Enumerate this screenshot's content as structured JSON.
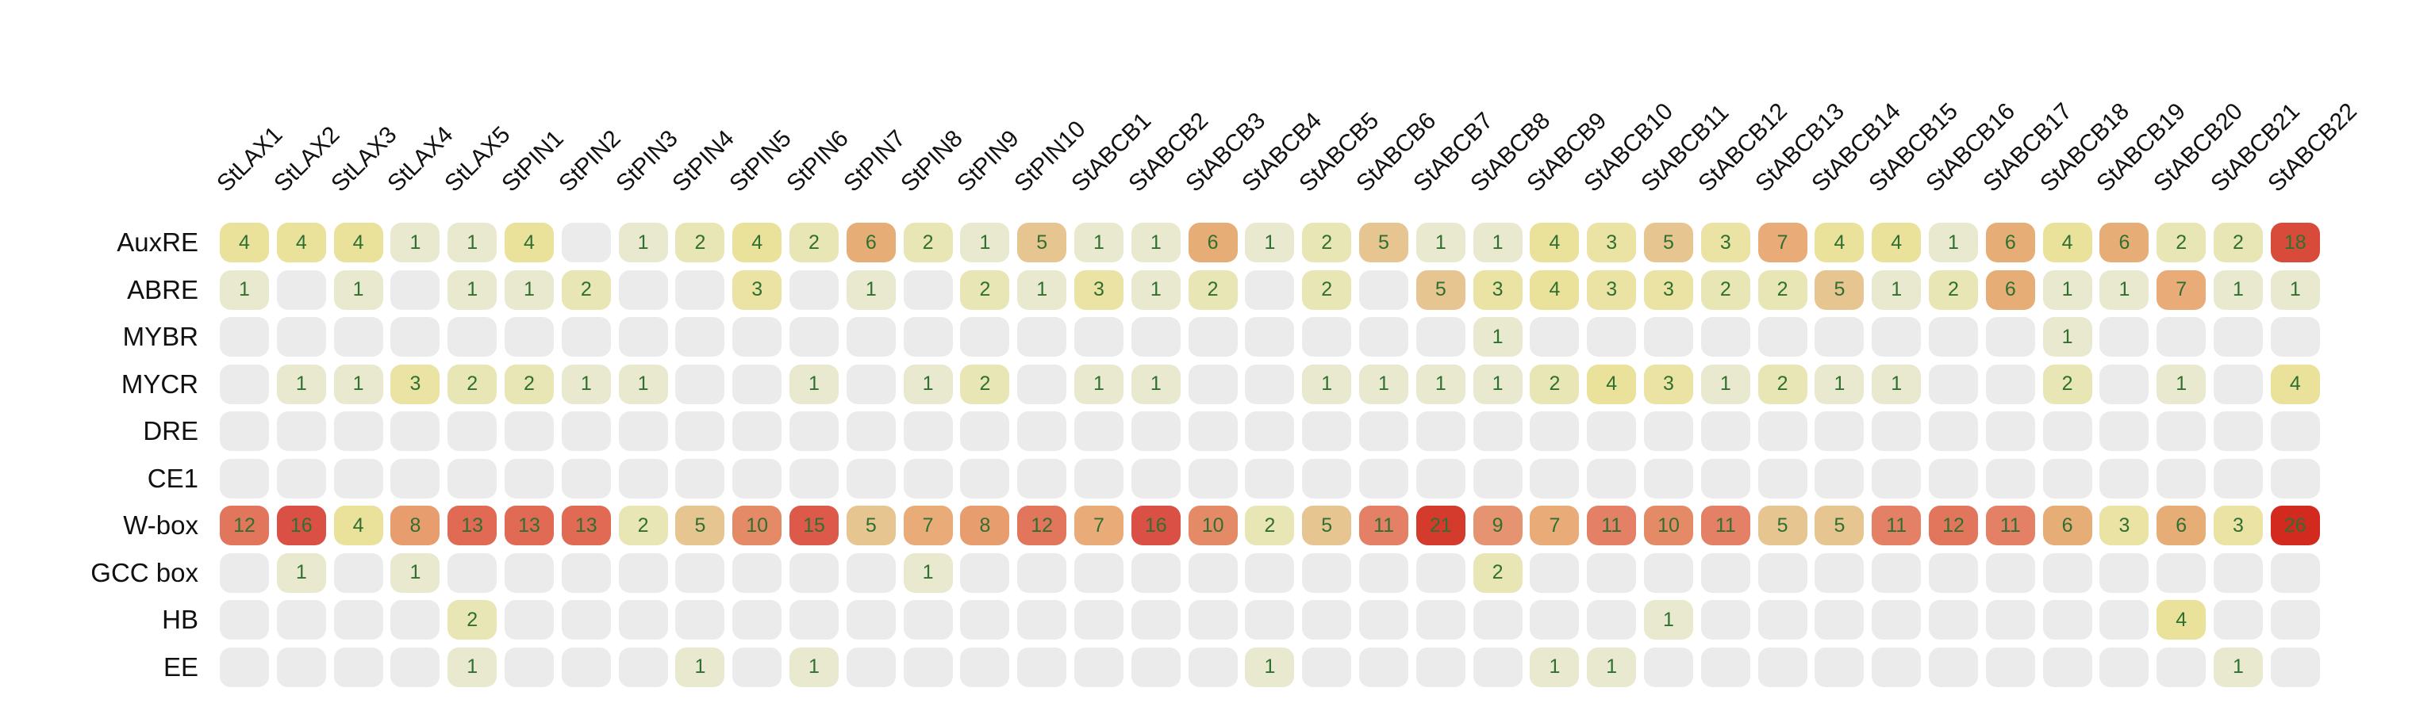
{
  "figure": {
    "background": "#ffffff",
    "description_hint": "Heatmap of cis-acting regulatory elements counts per gene"
  },
  "chart_data": {
    "type": "heatmap",
    "title": "",
    "xlabel": "",
    "ylabel": "",
    "legend": "none",
    "grid": "off",
    "value_range": [
      0,
      26
    ],
    "columns": [
      "StLAX1",
      "StLAX2",
      "StLAX3",
      "StLAX4",
      "StLAX5",
      "StPIN1",
      "StPIN2",
      "StPIN3",
      "StPIN4",
      "StPIN5",
      "StPIN6",
      "StPIN7",
      "StPIN8",
      "StPIN9",
      "StPIN10",
      "StABCB1",
      "StABCB2",
      "StABCB3",
      "StABCB4",
      "StABCB5",
      "StABCB6",
      "StABCB7",
      "StABCB8",
      "StABCB9",
      "StABCB10",
      "StABCB11",
      "StABCB12",
      "StABCB13",
      "StABCB14",
      "StABCB15",
      "StABCB16",
      "StABCB17",
      "StABCB18",
      "StABCB19",
      "StABCB20",
      "StABCB21",
      "StABCB22"
    ],
    "rows": [
      "AuxRE",
      "ABRE",
      "MYBR",
      "MYCR",
      "DRE",
      "CE1",
      "W-box",
      "GCC box",
      "HB",
      "EE"
    ],
    "values": [
      [
        4,
        4,
        4,
        1,
        1,
        4,
        null,
        1,
        2,
        4,
        2,
        6,
        2,
        1,
        5,
        1,
        1,
        6,
        1,
        2,
        5,
        1,
        1,
        4,
        3,
        5,
        3,
        7,
        4,
        4,
        1,
        6,
        4,
        6,
        2,
        2,
        18
      ],
      [
        1,
        null,
        1,
        null,
        1,
        1,
        2,
        null,
        null,
        3,
        null,
        1,
        null,
        2,
        1,
        3,
        1,
        2,
        null,
        2,
        null,
        5,
        3,
        4,
        3,
        3,
        2,
        2,
        5,
        1,
        2,
        6,
        1,
        1,
        7,
        1,
        1
      ],
      [
        null,
        null,
        null,
        null,
        null,
        null,
        null,
        null,
        null,
        null,
        null,
        null,
        null,
        null,
        null,
        null,
        null,
        null,
        null,
        null,
        null,
        null,
        1,
        null,
        null,
        null,
        null,
        null,
        null,
        null,
        null,
        null,
        1,
        null,
        null,
        null,
        null
      ],
      [
        null,
        1,
        1,
        3,
        2,
        2,
        1,
        1,
        null,
        null,
        1,
        null,
        1,
        2,
        null,
        1,
        1,
        null,
        null,
        1,
        1,
        1,
        1,
        2,
        4,
        3,
        1,
        2,
        1,
        1,
        null,
        null,
        2,
        null,
        1,
        null,
        4
      ],
      [
        null,
        null,
        null,
        null,
        null,
        null,
        null,
        null,
        null,
        null,
        null,
        null,
        null,
        null,
        null,
        null,
        null,
        null,
        null,
        null,
        null,
        null,
        null,
        null,
        null,
        null,
        null,
        null,
        null,
        null,
        null,
        null,
        null,
        null,
        null,
        null,
        null
      ],
      [
        null,
        null,
        null,
        null,
        null,
        null,
        null,
        null,
        null,
        null,
        null,
        null,
        null,
        null,
        null,
        null,
        null,
        null,
        null,
        null,
        null,
        null,
        null,
        null,
        null,
        null,
        null,
        null,
        null,
        null,
        null,
        null,
        null,
        null,
        null,
        null,
        null
      ],
      [
        12,
        16,
        4,
        8,
        13,
        13,
        13,
        2,
        5,
        10,
        15,
        5,
        7,
        8,
        12,
        7,
        16,
        10,
        2,
        5,
        11,
        21,
        9,
        7,
        11,
        10,
        11,
        5,
        5,
        11,
        12,
        11,
        6,
        3,
        6,
        3,
        26
      ],
      [
        null,
        1,
        null,
        1,
        null,
        null,
        null,
        null,
        null,
        null,
        null,
        null,
        1,
        null,
        null,
        null,
        null,
        null,
        null,
        null,
        null,
        null,
        2,
        null,
        null,
        null,
        null,
        null,
        null,
        null,
        null,
        null,
        null,
        null,
        null,
        null,
        null
      ],
      [
        null,
        null,
        null,
        null,
        2,
        null,
        null,
        null,
        null,
        null,
        null,
        null,
        null,
        null,
        null,
        null,
        null,
        null,
        null,
        null,
        null,
        null,
        null,
        null,
        null,
        1,
        null,
        null,
        null,
        null,
        null,
        null,
        null,
        null,
        4,
        null,
        null
      ],
      [
        null,
        null,
        null,
        null,
        1,
        null,
        null,
        null,
        1,
        null,
        1,
        null,
        null,
        null,
        null,
        null,
        null,
        null,
        1,
        null,
        null,
        null,
        null,
        1,
        1,
        null,
        null,
        null,
        null,
        null,
        null,
        null,
        null,
        null,
        null,
        1,
        null
      ]
    ],
    "colors": {
      "empty_cell": "#ebebeb",
      "cell_number_text": "#2f7030",
      "axis_label_text": "#111111",
      "colormap_stops": [
        [
          1,
          "#e9e9cf"
        ],
        [
          2,
          "#e9e6b6"
        ],
        [
          3,
          "#eae3a4"
        ],
        [
          4,
          "#eae29b"
        ],
        [
          5,
          "#e7c591"
        ],
        [
          6,
          "#e6ae76"
        ],
        [
          7,
          "#e9ab78"
        ],
        [
          8,
          "#e89d6e"
        ],
        [
          9,
          "#e59370"
        ],
        [
          10,
          "#e58a66"
        ],
        [
          11,
          "#e48065"
        ],
        [
          12,
          "#e2765c"
        ],
        [
          13,
          "#e06a54"
        ],
        [
          16,
          "#db5045"
        ],
        [
          18,
          "#d84b3b"
        ],
        [
          21,
          "#d53b2c"
        ],
        [
          26,
          "#d32a20"
        ]
      ]
    }
  }
}
